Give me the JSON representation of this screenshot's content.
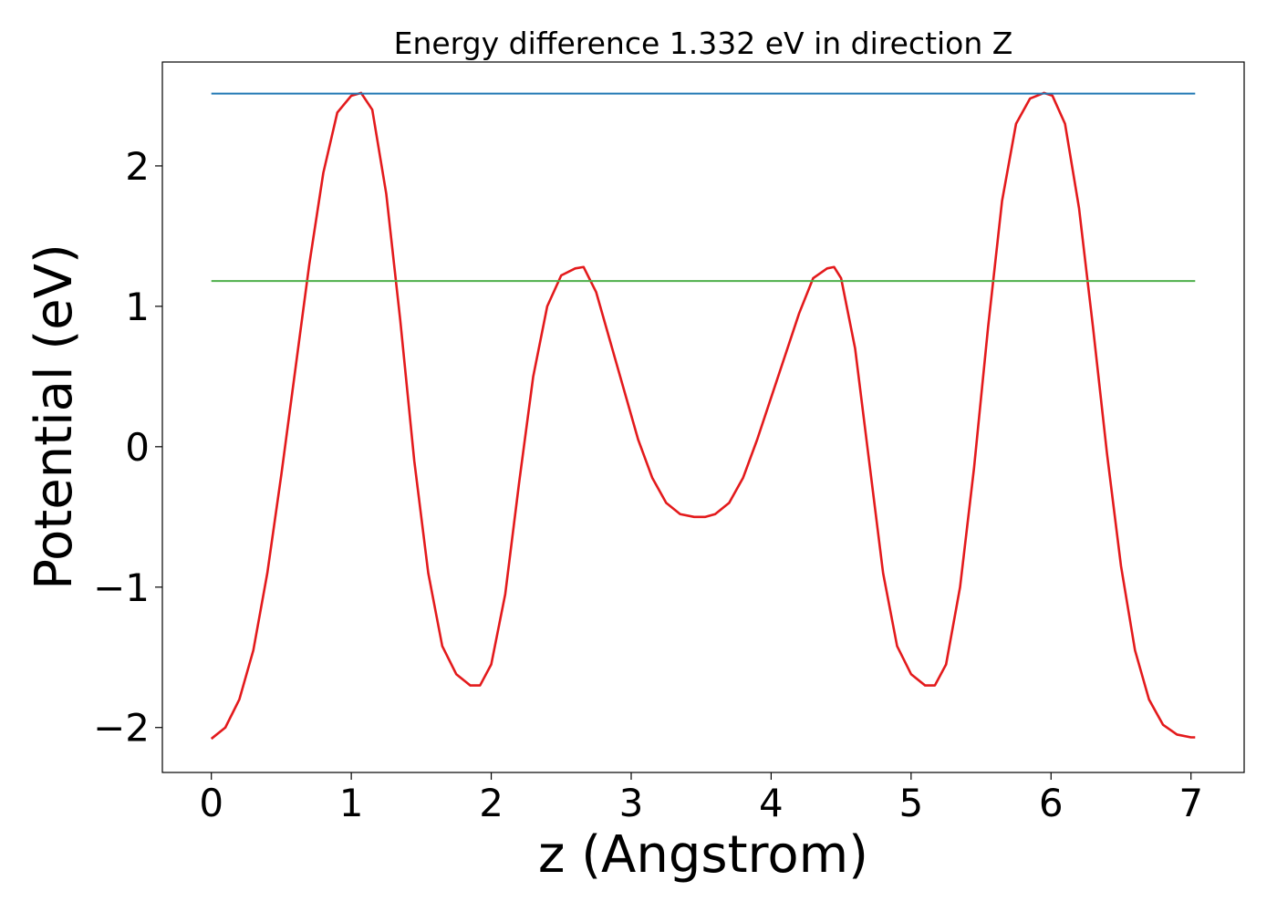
{
  "chart_data": {
    "type": "line",
    "title": "Energy difference 1.332 eV in direction Z",
    "xlabel": "z (Angstrom)",
    "ylabel": "Potential (eV)",
    "xlim": [
      -0.35,
      7.38
    ],
    "ylim": [
      -2.32,
      2.74
    ],
    "xticks": [
      0,
      1,
      2,
      3,
      4,
      5,
      6,
      7
    ],
    "xtick_labels": [
      "0",
      "1",
      "2",
      "3",
      "4",
      "5",
      "6",
      "7"
    ],
    "yticks": [
      -2,
      -1,
      0,
      1,
      2
    ],
    "ytick_labels": [
      "−2",
      "−1",
      "0",
      "1",
      "2"
    ],
    "grid": false,
    "legend": "none",
    "series": [
      {
        "kind": "curve",
        "color": "#e31a1c",
        "x": [
          0.0,
          0.1,
          0.2,
          0.3,
          0.4,
          0.5,
          0.6,
          0.7,
          0.8,
          0.9,
          1.0,
          1.07,
          1.15,
          1.25,
          1.35,
          1.45,
          1.55,
          1.65,
          1.75,
          1.85,
          1.92,
          2.0,
          2.1,
          2.2,
          2.3,
          2.4,
          2.5,
          2.6,
          2.66,
          2.75,
          2.85,
          2.95,
          3.05,
          3.15,
          3.25,
          3.35,
          3.45,
          3.53,
          3.6,
          3.7,
          3.8,
          3.9,
          4.0,
          4.1,
          4.2,
          4.3,
          4.4,
          4.45,
          4.5,
          4.6,
          4.7,
          4.8,
          4.9,
          5.0,
          5.1,
          5.17,
          5.25,
          5.35,
          5.45,
          5.55,
          5.65,
          5.75,
          5.85,
          5.95,
          6.01,
          6.1,
          6.2,
          6.3,
          6.4,
          6.5,
          6.6,
          6.7,
          6.8,
          6.9,
          7.0,
          7.03
        ],
        "y": [
          -2.08,
          -2.0,
          -1.8,
          -1.45,
          -0.9,
          -0.2,
          0.55,
          1.3,
          1.95,
          2.38,
          2.5,
          2.52,
          2.4,
          1.8,
          0.9,
          -0.1,
          -0.9,
          -1.42,
          -1.62,
          -1.7,
          -1.7,
          -1.55,
          -1.05,
          -0.25,
          0.5,
          1.0,
          1.22,
          1.27,
          1.28,
          1.1,
          0.75,
          0.4,
          0.05,
          -0.22,
          -0.4,
          -0.48,
          -0.5,
          -0.5,
          -0.48,
          -0.4,
          -0.22,
          0.05,
          0.35,
          0.65,
          0.95,
          1.2,
          1.27,
          1.28,
          1.2,
          0.7,
          -0.1,
          -0.9,
          -1.42,
          -1.62,
          -1.7,
          -1.7,
          -1.55,
          -1.0,
          -0.15,
          0.85,
          1.75,
          2.3,
          2.48,
          2.52,
          2.5,
          2.3,
          1.7,
          0.85,
          -0.05,
          -0.85,
          -1.45,
          -1.8,
          -1.98,
          -2.05,
          -2.07,
          -2.07
        ]
      },
      {
        "kind": "hline",
        "color": "#1f77b4",
        "x": [
          0.0,
          7.03
        ],
        "y": [
          2.515,
          2.515
        ]
      },
      {
        "kind": "hline",
        "color": "#4daf4a",
        "x": [
          0.0,
          7.03
        ],
        "y": [
          1.18,
          1.18
        ]
      }
    ]
  }
}
